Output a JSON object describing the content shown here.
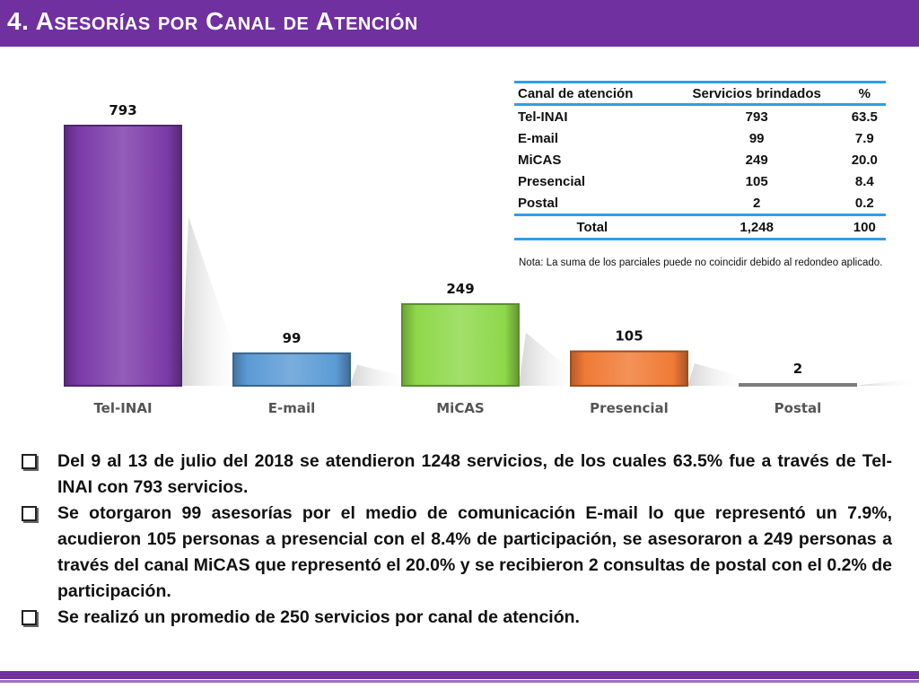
{
  "slide": {
    "title": "4. Asesorías por Canal de Atención"
  },
  "colors": {
    "header": "#7030a0",
    "table_rule": "#2e9ee8"
  },
  "chart_data": {
    "type": "bar",
    "categories": [
      "Tel-INAI",
      "E-mail",
      "MiCAS",
      "Presencial",
      "Postal"
    ],
    "values": [
      793,
      99,
      249,
      105,
      2
    ],
    "data_labels": [
      "793",
      "99",
      "249",
      "105",
      "2"
    ],
    "colors": [
      "#7b3aa8",
      "#5b9bd5",
      "#8ed84a",
      "#f07a35",
      "#bfbfbf"
    ]
  },
  "table": {
    "headers": [
      "Canal de atención",
      "Servicios brindados",
      "%"
    ],
    "rows": [
      [
        "Tel-INAI",
        "793",
        "63.5"
      ],
      [
        "E-mail",
        "99",
        "7.9"
      ],
      [
        "MiCAS",
        "249",
        "20.0"
      ],
      [
        "Presencial",
        "105",
        "8.4"
      ],
      [
        "Postal",
        "2",
        "0.2"
      ]
    ],
    "total": [
      "Total",
      "1,248",
      "100"
    ]
  },
  "nota": "Nota: La suma de los parciales puede no coincidir debido al redondeo aplicado.",
  "bullets": [
    "Del 9 al 13 de julio del 2018 se atendieron 1248 servicios, de los cuales 63.5% fue a través de Tel-INAI con 793 servicios.",
    "Se otorgaron 99 asesorías por el medio de comunicación E-mail lo que representó un 7.9%, acudieron 105 personas a presencial con el 8.4% de participación, se asesoraron a 249 personas a través del canal MiCAS que representó el 20.0% y se recibieron 2 consultas de postal con el 0.2% de participación.",
    "Se realizó un promedio de 250 servicios por canal de atención."
  ]
}
